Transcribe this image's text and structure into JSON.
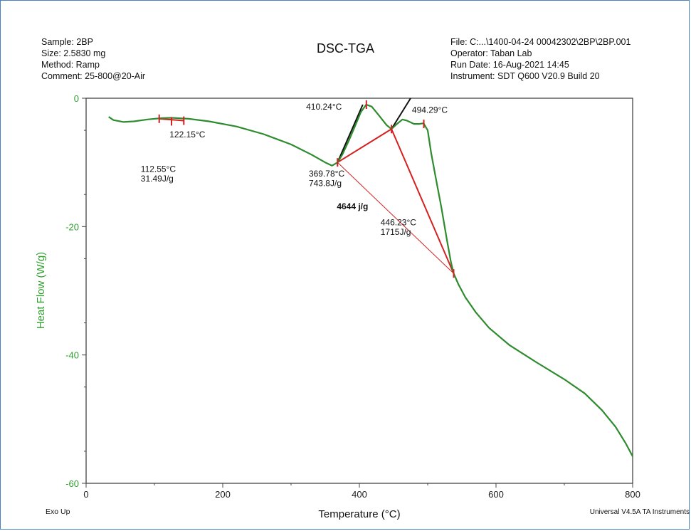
{
  "header": {
    "left_lines": [
      "Sample: 2BP",
      "Size:  2.5830 mg",
      "Method: Ramp",
      "Comment: 25-800@20-Air"
    ],
    "title": "DSC-TGA",
    "right_lines": [
      "File: C:...\\1400-04-24 00042302\\2BP\\2BP.001",
      "Operator: Taban Lab",
      "Run Date: 16-Aug-2021 14:45",
      "Instrument: SDT Q600 V20.9 Build 20"
    ]
  },
  "footer": {
    "left": "Exo Up",
    "right": "Universal V4.5A TA Instruments"
  },
  "colors": {
    "curve": "#2e8b2e",
    "axis_label": "#2e9e2e",
    "analysis_red": "#d42020",
    "analysis_black": "#111111"
  },
  "chart_data": {
    "type": "line",
    "title": "DSC-TGA",
    "xlabel": "Temperature (°C)",
    "ylabel": "Heat Flow (W/g)",
    "xlim": [
      0,
      800
    ],
    "ylim": [
      -60,
      0
    ],
    "x_ticks": [
      0,
      200,
      400,
      600,
      800
    ],
    "y_ticks": [
      0,
      -20,
      -40,
      -60
    ],
    "grid": false,
    "series": [
      {
        "points": [
          [
            33,
            -2.9
          ],
          [
            40,
            -3.4
          ],
          [
            55,
            -3.7
          ],
          [
            70,
            -3.6
          ],
          [
            90,
            -3.3
          ],
          [
            110,
            -3.1
          ],
          [
            125,
            -3.05
          ],
          [
            150,
            -3.2
          ],
          [
            180,
            -3.6
          ],
          [
            220,
            -4.4
          ],
          [
            260,
            -5.6
          ],
          [
            300,
            -7.2
          ],
          [
            330,
            -8.8
          ],
          [
            350,
            -10.0
          ],
          [
            360,
            -10.5
          ],
          [
            368,
            -10.0
          ],
          [
            375,
            -8.8
          ],
          [
            385,
            -6.5
          ],
          [
            395,
            -4.0
          ],
          [
            402,
            -2.2
          ],
          [
            410,
            -1.0
          ],
          [
            418,
            -1.3
          ],
          [
            428,
            -2.6
          ],
          [
            440,
            -4.2
          ],
          [
            447,
            -4.8
          ],
          [
            455,
            -4.0
          ],
          [
            463,
            -3.3
          ],
          [
            470,
            -3.5
          ],
          [
            480,
            -4.0
          ],
          [
            488,
            -4.0
          ],
          [
            494,
            -3.9
          ],
          [
            500,
            -5.0
          ],
          [
            505,
            -8.5
          ],
          [
            512,
            -12.5
          ],
          [
            520,
            -17.0
          ],
          [
            528,
            -22.0
          ],
          [
            534,
            -25.5
          ],
          [
            538,
            -27.3
          ],
          [
            545,
            -29.0
          ],
          [
            555,
            -31.0
          ],
          [
            570,
            -33.3
          ],
          [
            590,
            -35.8
          ],
          [
            620,
            -38.5
          ],
          [
            660,
            -41.2
          ],
          [
            700,
            -43.8
          ],
          [
            730,
            -46.0
          ],
          [
            755,
            -48.6
          ],
          [
            775,
            -51.2
          ],
          [
            790,
            -53.8
          ],
          [
            800,
            -55.8
          ]
        ]
      }
    ],
    "annotations": [
      {
        "text": "122.15°C",
        "x": 122.15,
        "y": -6.1
      },
      {
        "text": "112.55°C",
        "x": 80,
        "y": -11.5
      },
      {
        "text": "31.49J/g",
        "x": 80,
        "y": -13.0
      },
      {
        "text": "410.24°C",
        "x": 322,
        "y": -1.8
      },
      {
        "text": "494.29°C",
        "x": 477,
        "y": -2.3
      },
      {
        "text": "369.78°C",
        "x": 326,
        "y": -12.2
      },
      {
        "text": "743.8J/g",
        "x": 326,
        "y": -13.7
      },
      {
        "text": "4644 j/g",
        "x": 367,
        "y": -17.3
      },
      {
        "text": "446.23°C",
        "x": 431,
        "y": -19.8
      },
      {
        "text": "1715J/g",
        "x": 431,
        "y": -21.3
      }
    ],
    "analysis_lines": [
      {
        "color": "red",
        "x1": 107,
        "y1": -3.2,
        "x2": 143,
        "y2": -3.5,
        "width": 2
      },
      {
        "color": "red",
        "x1": 368,
        "y1": -10.0,
        "x2": 447,
        "y2": -4.8,
        "width": 2
      },
      {
        "color": "red",
        "x1": 447,
        "y1": -4.8,
        "x2": 538,
        "y2": -27.3,
        "width": 2
      },
      {
        "color": "red",
        "x1": 368,
        "y1": -10.0,
        "x2": 538,
        "y2": -27.3,
        "width": 1
      },
      {
        "color": "black",
        "x1": 368,
        "y1": -10.0,
        "x2": 405,
        "y2": -1.0,
        "width": 2
      },
      {
        "color": "black",
        "x1": 447,
        "y1": -4.8,
        "x2": 475,
        "y2": 0,
        "width": 2
      }
    ],
    "analysis_markers": [
      {
        "x": 107,
        "y": -3.2
      },
      {
        "x": 125,
        "y": -3.6
      },
      {
        "x": 143,
        "y": -3.5
      },
      {
        "x": 368,
        "y": -10.0
      },
      {
        "x": 410.24,
        "y": -1.0
      },
      {
        "x": 447,
        "y": -4.8
      },
      {
        "x": 494.29,
        "y": -4.0
      },
      {
        "x": 538,
        "y": -27.3
      }
    ]
  }
}
